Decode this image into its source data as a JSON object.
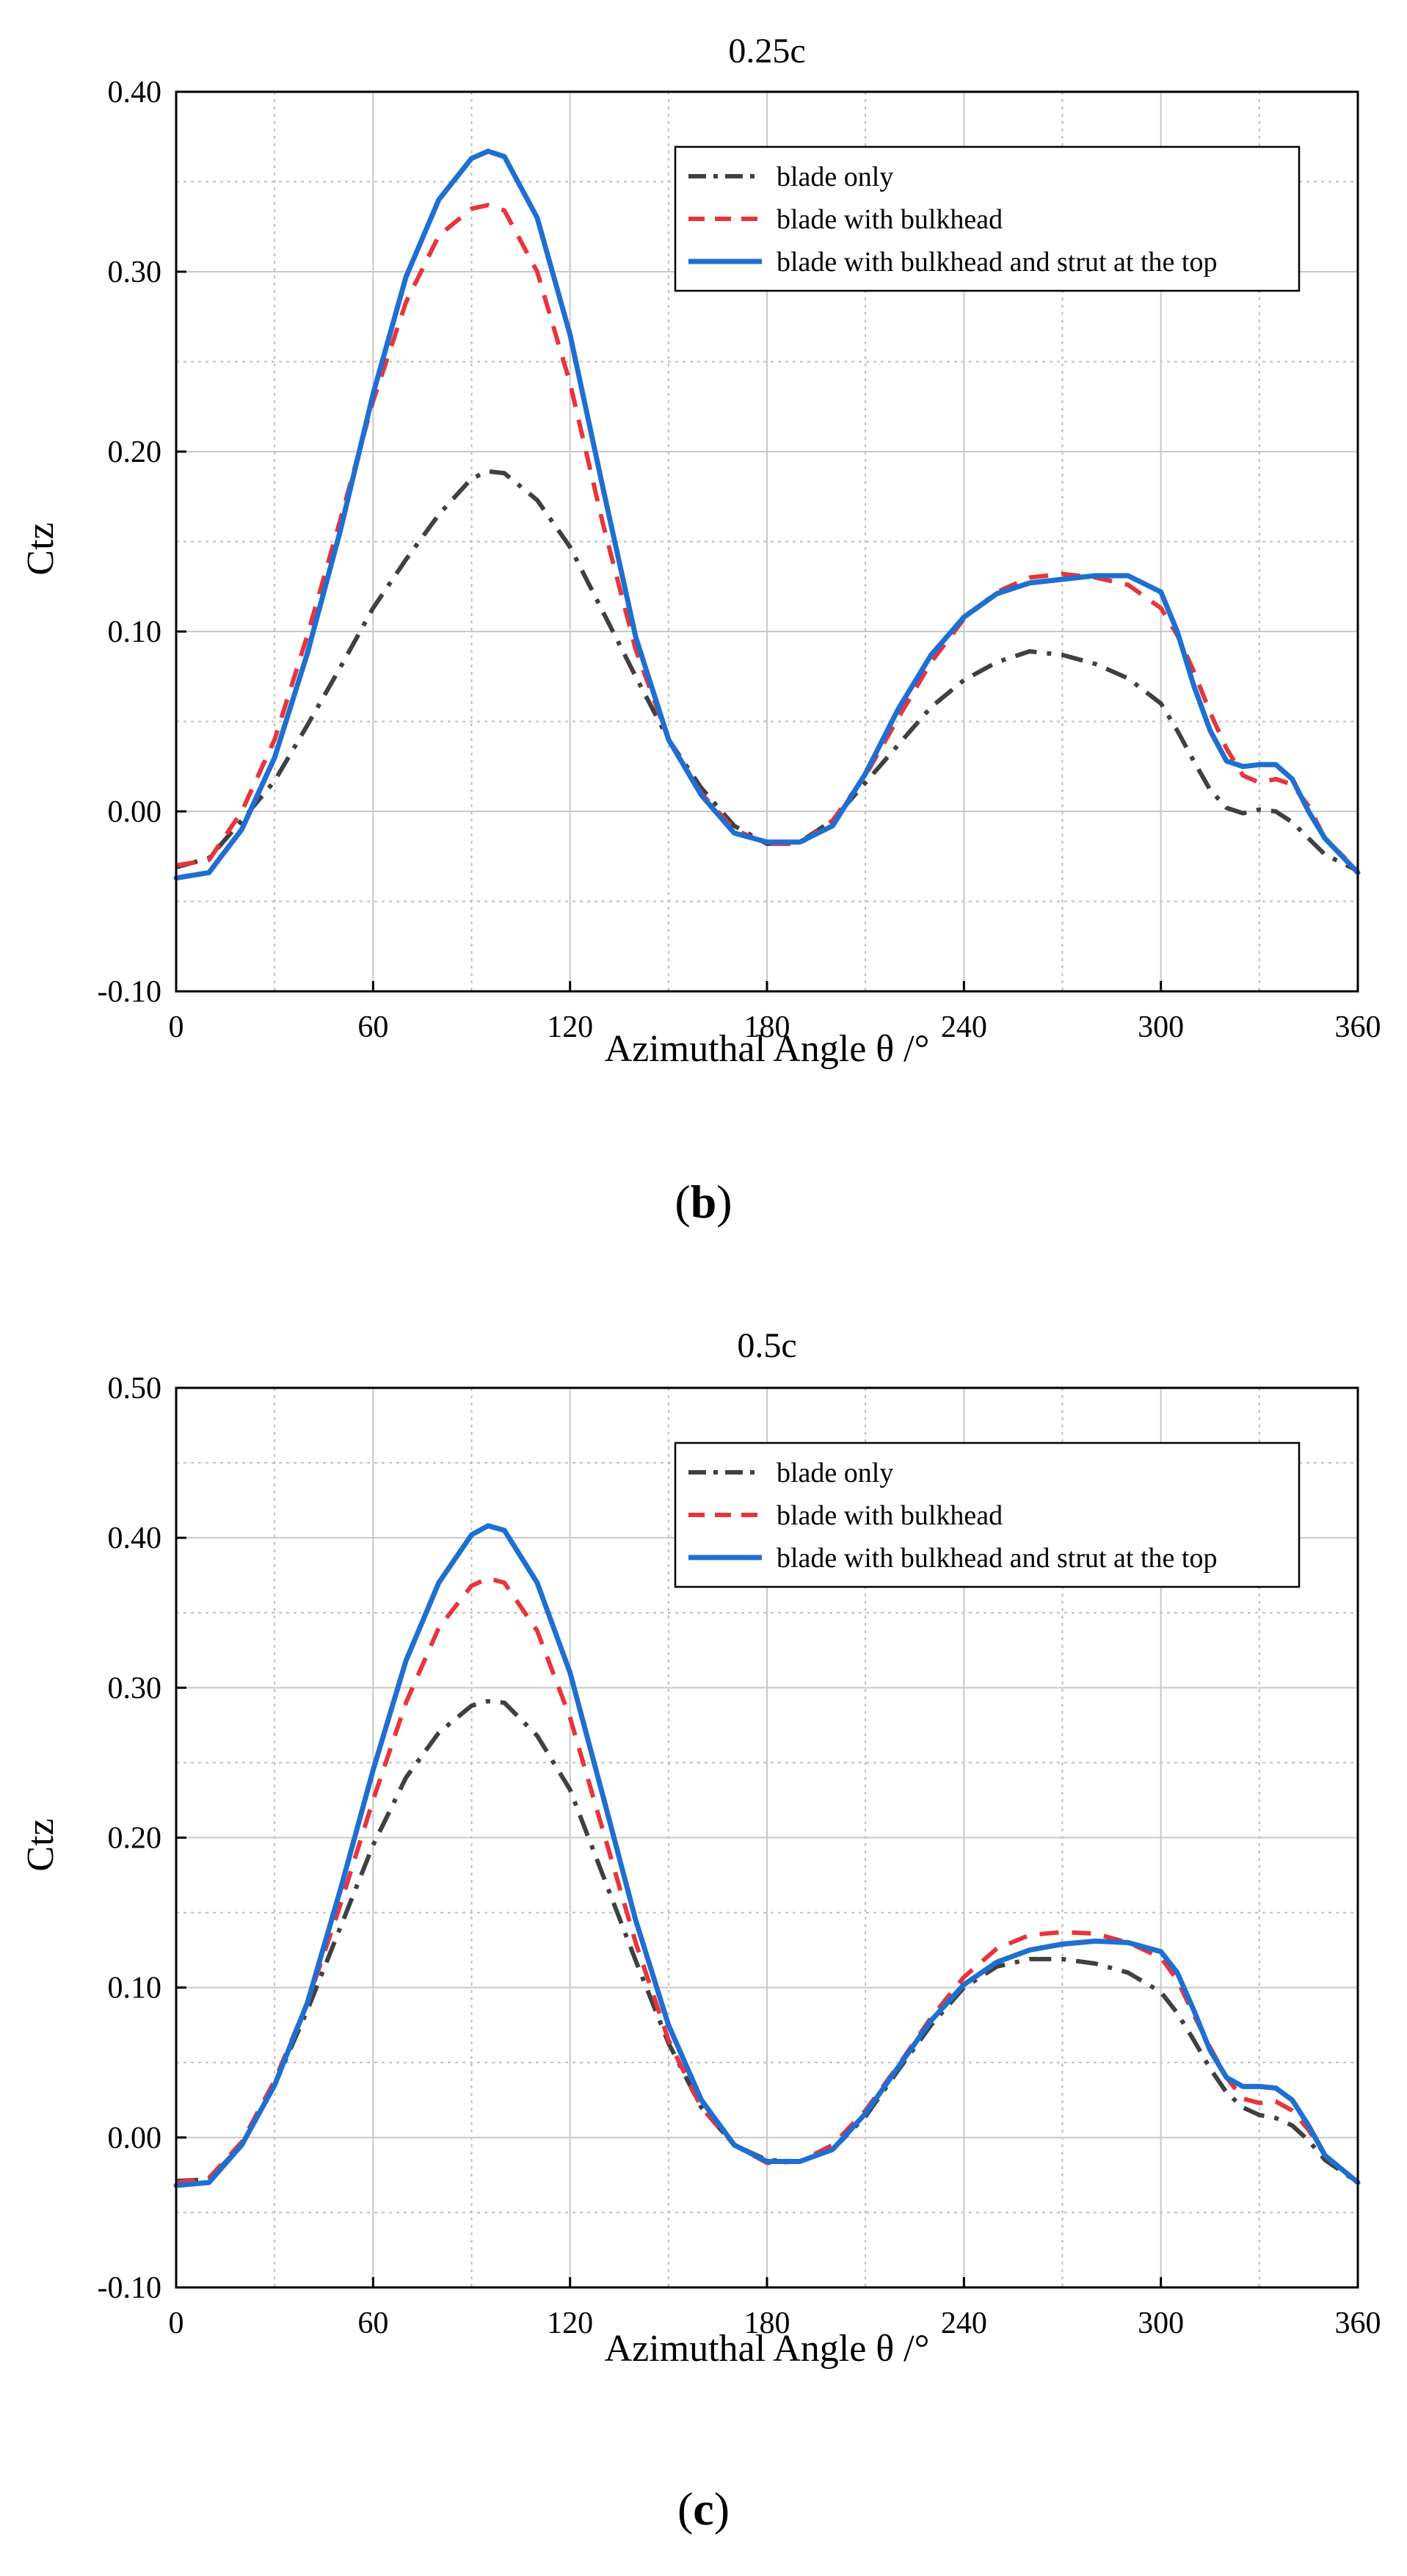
{
  "panels": [
    {
      "caption_letter": "b",
      "chart_data": {
        "type": "line",
        "title": "0.25c",
        "xlabel": "Azimuthal Angle θ /°",
        "ylabel": "Ctz",
        "xlim": [
          0,
          360
        ],
        "ylim": [
          -0.1,
          0.4
        ],
        "xticks": [
          "0",
          "60",
          "120",
          "180",
          "240",
          "300",
          "360"
        ],
        "yticks": [
          "-0.10",
          "0.00",
          "0.10",
          "0.20",
          "0.30",
          "0.40"
        ],
        "grid": true,
        "legend_position": "top-right",
        "x": [
          0,
          10,
          20,
          30,
          40,
          50,
          60,
          70,
          80,
          90,
          95,
          100,
          110,
          120,
          130,
          140,
          150,
          160,
          170,
          180,
          190,
          200,
          210,
          220,
          230,
          240,
          250,
          260,
          270,
          280,
          290,
          300,
          305,
          310,
          315,
          320,
          325,
          330,
          335,
          340,
          345,
          350,
          360
        ],
        "series": [
          {
            "name": "blade only",
            "color": "#404040",
            "dash": "dashdot",
            "values": [
              -0.031,
              -0.026,
              -0.005,
              0.017,
              0.048,
              0.08,
              0.113,
              0.14,
              0.165,
              0.185,
              0.189,
              0.188,
              0.173,
              0.147,
              0.111,
              0.075,
              0.04,
              0.013,
              -0.008,
              -0.018,
              -0.017,
              -0.005,
              0.016,
              0.037,
              0.058,
              0.073,
              0.083,
              0.089,
              0.087,
              0.082,
              0.074,
              0.06,
              0.045,
              0.028,
              0.012,
              0.002,
              -0.001,
              0.001,
              0.0,
              -0.006,
              -0.015,
              -0.024,
              -0.033
            ]
          },
          {
            "name": "blade with bulkhead",
            "color": "#e8343c",
            "dash": "dash",
            "values": [
              -0.03,
              -0.027,
              0.0,
              0.04,
              0.098,
              0.162,
              0.228,
              0.283,
              0.32,
              0.335,
              0.337,
              0.334,
              0.3,
              0.238,
              0.16,
              0.09,
              0.04,
              0.01,
              -0.01,
              -0.018,
              -0.018,
              -0.005,
              0.02,
              0.052,
              0.083,
              0.107,
              0.122,
              0.13,
              0.132,
              0.13,
              0.126,
              0.113,
              0.098,
              0.078,
              0.055,
              0.035,
              0.02,
              0.016,
              0.018,
              0.015,
              0.003,
              -0.015,
              -0.033
            ]
          },
          {
            "name": "blade with bulkhead and strut at the top",
            "color": "#1f6fd1",
            "dash": "solid",
            "values": [
              -0.037,
              -0.034,
              -0.01,
              0.03,
              0.088,
              0.156,
              0.232,
              0.297,
              0.34,
              0.363,
              0.367,
              0.364,
              0.33,
              0.265,
              0.18,
              0.097,
              0.04,
              0.009,
              -0.012,
              -0.017,
              -0.017,
              -0.008,
              0.021,
              0.057,
              0.087,
              0.108,
              0.121,
              0.127,
              0.129,
              0.131,
              0.131,
              0.122,
              0.1,
              0.07,
              0.045,
              0.028,
              0.025,
              0.026,
              0.026,
              0.018,
              0.0,
              -0.015,
              -0.034
            ]
          }
        ]
      }
    },
    {
      "caption_letter": "c",
      "chart_data": {
        "type": "line",
        "title": "0.5c",
        "xlabel": "Azimuthal Angle θ /°",
        "ylabel": "Ctz",
        "xlim": [
          0,
          360
        ],
        "ylim": [
          -0.1,
          0.5
        ],
        "xticks": [
          "0",
          "60",
          "120",
          "180",
          "240",
          "300",
          "360"
        ],
        "yticks": [
          "-0.10",
          "0.00",
          "0.10",
          "0.20",
          "0.30",
          "0.40",
          "0.50"
        ],
        "grid": true,
        "legend_position": "top-right",
        "x": [
          0,
          10,
          20,
          30,
          40,
          50,
          60,
          70,
          80,
          90,
          95,
          100,
          110,
          120,
          130,
          140,
          150,
          160,
          170,
          180,
          190,
          200,
          210,
          220,
          230,
          240,
          250,
          260,
          270,
          280,
          290,
          300,
          305,
          310,
          315,
          320,
          325,
          330,
          335,
          340,
          345,
          350,
          360
        ],
        "series": [
          {
            "name": "blade only",
            "color": "#404040",
            "dash": "dashdot",
            "values": [
              -0.029,
              -0.028,
              -0.005,
              0.035,
              0.085,
              0.14,
              0.195,
              0.24,
              0.27,
              0.288,
              0.291,
              0.29,
              0.268,
              0.232,
              0.175,
              0.118,
              0.063,
              0.02,
              -0.005,
              -0.015,
              -0.016,
              -0.008,
              0.014,
              0.045,
              0.075,
              0.1,
              0.114,
              0.119,
              0.119,
              0.116,
              0.11,
              0.097,
              0.083,
              0.065,
              0.046,
              0.03,
              0.02,
              0.015,
              0.013,
              0.008,
              -0.002,
              -0.015,
              -0.03
            ]
          },
          {
            "name": "blade with bulkhead",
            "color": "#e8343c",
            "dash": "dash",
            "values": [
              -0.03,
              -0.027,
              -0.003,
              0.038,
              0.09,
              0.155,
              0.225,
              0.29,
              0.34,
              0.368,
              0.373,
              0.37,
              0.338,
              0.28,
              0.205,
              0.13,
              0.065,
              0.02,
              -0.005,
              -0.017,
              -0.016,
              -0.005,
              0.018,
              0.048,
              0.08,
              0.107,
              0.126,
              0.135,
              0.137,
              0.136,
              0.13,
              0.12,
              0.105,
              0.082,
              0.06,
              0.04,
              0.026,
              0.023,
              0.024,
              0.018,
              0.005,
              -0.012,
              -0.03
            ]
          },
          {
            "name": "blade with bulkhead and strut at the top",
            "color": "#1f6fd1",
            "dash": "solid",
            "values": [
              -0.032,
              -0.03,
              -0.005,
              0.035,
              0.09,
              0.165,
              0.245,
              0.318,
              0.37,
              0.402,
              0.408,
              0.405,
              0.37,
              0.31,
              0.228,
              0.145,
              0.075,
              0.025,
              -0.005,
              -0.016,
              -0.016,
              -0.008,
              0.016,
              0.047,
              0.078,
              0.102,
              0.117,
              0.125,
              0.129,
              0.131,
              0.13,
              0.124,
              0.11,
              0.085,
              0.058,
              0.04,
              0.034,
              0.034,
              0.033,
              0.025,
              0.008,
              -0.012,
              -0.03
            ]
          }
        ]
      }
    }
  ]
}
